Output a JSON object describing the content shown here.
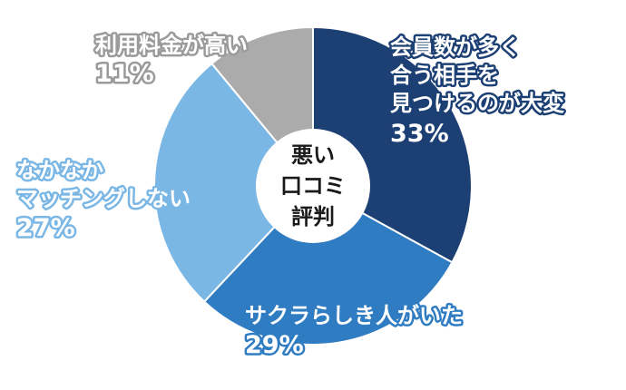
{
  "chart_data": {
    "type": "pie",
    "center_label": [
      "悪い",
      "口コミ",
      "評判"
    ],
    "slices": [
      {
        "label_lines": [
          "会員数が多く",
          "合う相手を",
          "見つけるのが大変"
        ],
        "value": 33,
        "value_label": "33%",
        "color": "#1c3f74",
        "text_color": "#ffffff",
        "outline_color": "#1c3f74"
      },
      {
        "label_lines": [
          "サクラらしき人がいた"
        ],
        "value": 29,
        "value_label": "29%",
        "color": "#2f7cc2",
        "text_color": "#ffffff",
        "outline_color": "#2f7cc2"
      },
      {
        "label_lines": [
          "なかなか",
          "マッチングしない"
        ],
        "value": 27,
        "value_label": "27%",
        "color": "#7bb7e5",
        "text_color": "#ffffff",
        "outline_color": "#7bb7e5"
      },
      {
        "label_lines": [
          "利用料金が高い"
        ],
        "value": 11,
        "value_label": "11%",
        "color": "#ababab",
        "text_color": "#ffffff",
        "outline_color": "#9a9a9a"
      }
    ]
  }
}
